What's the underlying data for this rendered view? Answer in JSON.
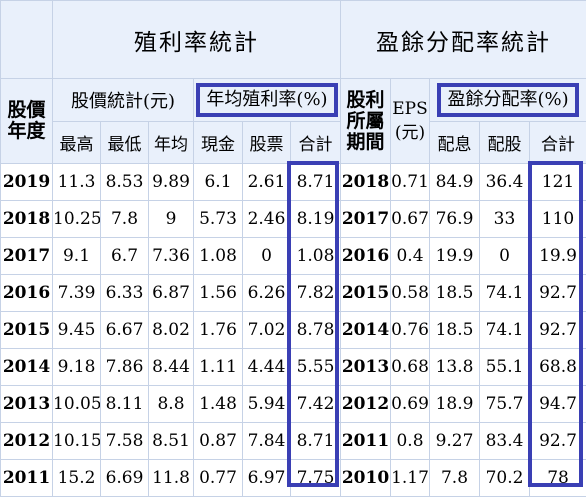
{
  "headers": {
    "dividend_yield_title": "殖利率統計",
    "payout_title": "盈餘分配率統計",
    "stock_year": "股價\n年度",
    "price_stats": "股價統計(元)",
    "avg_yield": "年均殖利率(%)",
    "dividend_year": "股利\n所屬\n期間",
    "eps": "EPS\n(元)",
    "payout_ratio": "盈餘分配率(%)",
    "cols": {
      "high": "最高",
      "low": "最低",
      "avg": "年均",
      "cash": "現金",
      "stock": "股票",
      "total": "合計",
      "cash_payout": "配息",
      "stock_payout": "配股",
      "total_payout": "合計"
    }
  },
  "rows": [
    {
      "year": "2019",
      "high": "11.3",
      "low": "8.53",
      "avg": "9.89",
      "cash": "6.1",
      "stock": "2.61",
      "total": "8.71",
      "div_year": "2018",
      "eps": "0.71",
      "cash_payout": "84.9",
      "stock_payout": "36.4",
      "total_payout": "121"
    },
    {
      "year": "2018",
      "high": "10.25",
      "low": "7.8",
      "avg": "9",
      "cash": "5.73",
      "stock": "2.46",
      "total": "8.19",
      "div_year": "2017",
      "eps": "0.67",
      "cash_payout": "76.9",
      "stock_payout": "33",
      "total_payout": "110"
    },
    {
      "year": "2017",
      "high": "9.1",
      "low": "6.7",
      "avg": "7.36",
      "cash": "1.08",
      "stock": "0",
      "total": "1.08",
      "div_year": "2016",
      "eps": "0.4",
      "cash_payout": "19.9",
      "stock_payout": "0",
      "total_payout": "19.9"
    },
    {
      "year": "2016",
      "high": "7.39",
      "low": "6.33",
      "avg": "6.87",
      "cash": "1.56",
      "stock": "6.26",
      "total": "7.82",
      "div_year": "2015",
      "eps": "0.58",
      "cash_payout": "18.5",
      "stock_payout": "74.1",
      "total_payout": "92.7"
    },
    {
      "year": "2015",
      "high": "9.45",
      "low": "6.67",
      "avg": "8.02",
      "cash": "1.76",
      "stock": "7.02",
      "total": "8.78",
      "div_year": "2014",
      "eps": "0.76",
      "cash_payout": "18.5",
      "stock_payout": "74.1",
      "total_payout": "92.7"
    },
    {
      "year": "2014",
      "high": "9.18",
      "low": "7.86",
      "avg": "8.44",
      "cash": "1.11",
      "stock": "4.44",
      "total": "5.55",
      "div_year": "2013",
      "eps": "0.68",
      "cash_payout": "13.8",
      "stock_payout": "55.1",
      "total_payout": "68.8"
    },
    {
      "year": "2013",
      "high": "10.05",
      "low": "8.11",
      "avg": "8.8",
      "cash": "1.48",
      "stock": "5.94",
      "total": "7.42",
      "div_year": "2012",
      "eps": "0.69",
      "cash_payout": "18.9",
      "stock_payout": "75.7",
      "total_payout": "94.7"
    },
    {
      "year": "2012",
      "high": "10.15",
      "low": "7.58",
      "avg": "8.51",
      "cash": "0.87",
      "stock": "7.84",
      "total": "8.71",
      "div_year": "2011",
      "eps": "0.8",
      "cash_payout": "9.27",
      "stock_payout": "83.4",
      "total_payout": "92.7"
    },
    {
      "year": "2011",
      "high": "15.2",
      "low": "6.69",
      "avg": "11.8",
      "cash": "0.77",
      "stock": "6.97",
      "total": "7.75",
      "div_year": "2010",
      "eps": "1.17",
      "cash_payout": "7.8",
      "stock_payout": "70.2",
      "total_payout": "78"
    }
  ],
  "colors": {
    "header_bg": "#e9f0fb",
    "grid": "#c6d2e6",
    "highlight": "#3a3fb4"
  }
}
